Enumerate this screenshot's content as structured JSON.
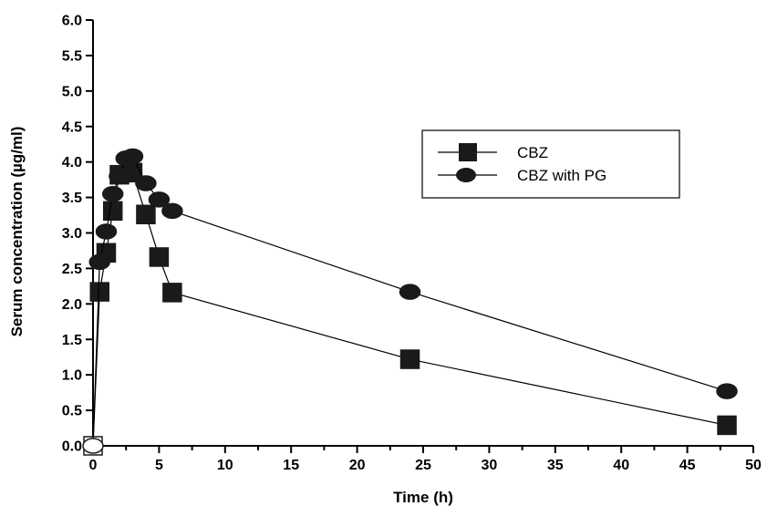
{
  "chart_data": {
    "type": "line",
    "xlabel": "Time (h)",
    "ylabel": "Serum concentration (µg/ml)",
    "xlim": [
      0,
      50
    ],
    "ylim": [
      0,
      6.0
    ],
    "x_ticks": [
      "0",
      "5",
      "10",
      "15",
      "20",
      "25",
      "30",
      "35",
      "40",
      "45",
      "50"
    ],
    "y_ticks": [
      "0.0",
      "0.5",
      "1.0",
      "1.5",
      "2.0",
      "2.5",
      "3.0",
      "3.5",
      "4.0",
      "4.5",
      "5.0",
      "5.5",
      "6.0"
    ],
    "grid": false,
    "legend_position": "upper-right",
    "series": [
      {
        "name": "CBZ",
        "marker": "square",
        "color": "#1a1a1a",
        "x": [
          0,
          0.5,
          1,
          1.5,
          2,
          3,
          4,
          5,
          6,
          24,
          48
        ],
        "y": [
          0,
          2.17,
          2.72,
          3.31,
          3.82,
          3.85,
          3.26,
          2.66,
          2.16,
          1.22,
          0.29
        ]
      },
      {
        "name": "CBZ with PG",
        "marker": "circle",
        "color": "#1a1a1a",
        "x": [
          0,
          0.5,
          1,
          1.5,
          2,
          2.5,
          3,
          4,
          5,
          6,
          24,
          48
        ],
        "y": [
          0,
          2.59,
          3.02,
          3.55,
          3.8,
          4.05,
          4.08,
          3.7,
          3.47,
          3.31,
          2.17,
          0.77
        ]
      }
    ]
  }
}
